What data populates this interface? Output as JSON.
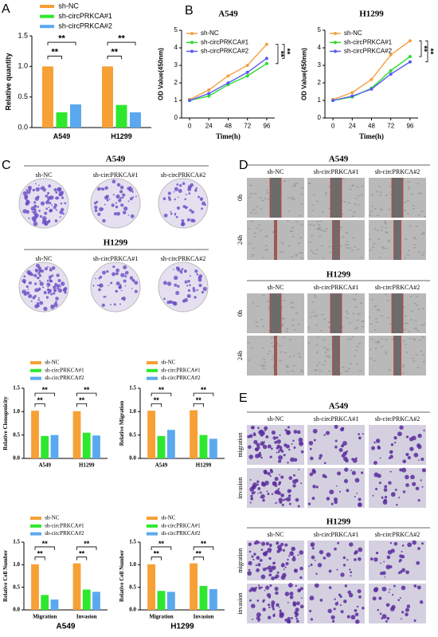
{
  "figure": {
    "panel_labels": [
      "A",
      "B",
      "C",
      "D",
      "E"
    ],
    "cell_lines": [
      "A549",
      "H1299"
    ],
    "groups": [
      "sh-NC",
      "sh-circPRKCA#1",
      "sh-circPRKCA#2"
    ],
    "times": [
      "0h",
      "24h"
    ],
    "assays": [
      "migration",
      "invasion"
    ]
  },
  "chart_data": [
    {
      "type": "bar",
      "ylabel": "Relative quantity",
      "categories": [
        "A549",
        "H1299"
      ],
      "series": [
        {
          "name": "sh-NC",
          "color": "#f7a035",
          "values": [
            1.0,
            1.0
          ]
        },
        {
          "name": "sh-circPRKCA#1",
          "color": "#2ee82e",
          "values": [
            0.25,
            0.37
          ]
        },
        {
          "name": "sh-circPRKCA#2",
          "color": "#5aa9f0",
          "values": [
            0.38,
            0.25
          ]
        }
      ],
      "ylim": [
        0,
        1.5
      ],
      "yticks": [
        {
          "value": 0,
          "label": "0.0"
        },
        {
          "value": 0.5,
          "label": "0.5"
        },
        {
          "value": 1,
          "label": "1.0"
        },
        {
          "value": 1.5,
          "label": "1.5"
        }
      ],
      "annotations": [
        "**",
        "**",
        "**",
        "**"
      ]
    },
    {
      "type": "line",
      "title": "A549",
      "xlabel": "Time(h)",
      "ylabel": "OD Value(450nm)",
      "x": [
        0,
        24,
        48,
        72,
        96
      ],
      "series": [
        {
          "name": "sh-NC",
          "color": "#f5a142",
          "values": [
            1.05,
            1.6,
            2.4,
            3.0,
            4.2
          ]
        },
        {
          "name": "sh-circPRKCA#1",
          "color": "#2edb2e",
          "values": [
            1.0,
            1.25,
            1.9,
            2.4,
            3.1
          ]
        },
        {
          "name": "sh-circPRKCA#2",
          "color": "#5b5bf0",
          "values": [
            1.0,
            1.4,
            2.0,
            2.6,
            3.4
          ]
        }
      ],
      "xlim": [
        -10,
        106
      ],
      "xticks": [
        0,
        24,
        48,
        72,
        96
      ],
      "ylim": [
        0,
        5
      ],
      "yticks": [
        0,
        1,
        2,
        3,
        4,
        5
      ],
      "annotations": [
        "**",
        "**"
      ]
    },
    {
      "type": "line",
      "title": "H1299",
      "xlabel": "Time(h)",
      "ylabel": "OD Value(450nm)",
      "x": [
        0,
        24,
        48,
        72,
        96
      ],
      "series": [
        {
          "name": "sh-NC",
          "color": "#f5a142",
          "values": [
            1.05,
            1.45,
            2.2,
            3.6,
            4.4
          ]
        },
        {
          "name": "sh-circPRKCA#1",
          "color": "#2edb2e",
          "values": [
            1.0,
            1.2,
            1.7,
            2.7,
            3.5
          ]
        },
        {
          "name": "sh-circPRKCA#2",
          "color": "#5b5bf0",
          "values": [
            1.0,
            1.25,
            1.65,
            2.5,
            3.2
          ]
        }
      ],
      "xlim": [
        -10,
        106
      ],
      "xticks": [
        0,
        24,
        48,
        72,
        96
      ],
      "ylim": [
        0,
        5
      ],
      "yticks": [
        0,
        1,
        2,
        3,
        4,
        5
      ],
      "annotations": [
        "**",
        "**"
      ]
    },
    {
      "type": "bar",
      "ylabel": "Relative Clonogenicity",
      "categories": [
        "A549",
        "H1299"
      ],
      "series": [
        {
          "name": "sh-NC",
          "color": "#f7a035",
          "values": [
            1.02,
            1.01
          ]
        },
        {
          "name": "sh-circPRKCA#1",
          "color": "#2ee82e",
          "values": [
            0.48,
            0.55
          ]
        },
        {
          "name": "sh-circPRKCA#2",
          "color": "#5aa9f0",
          "values": [
            0.5,
            0.49
          ]
        }
      ],
      "ylim": [
        0,
        1.5
      ],
      "yticks": [
        {
          "value": 0,
          "label": "0.0"
        },
        {
          "value": 0.5,
          "label": "0.5"
        },
        {
          "value": 1,
          "label": "1.0"
        },
        {
          "value": 1.5,
          "label": "1.5"
        }
      ],
      "annotations": [
        "**",
        "**",
        "**",
        "**"
      ]
    },
    {
      "type": "bar",
      "ylabel": "Relative Migration",
      "categories": [
        "A549",
        "H1299"
      ],
      "series": [
        {
          "name": "sh-NC",
          "color": "#f7a035",
          "values": [
            1.02,
            1.03
          ]
        },
        {
          "name": "sh-circPRKCA#1",
          "color": "#2ee82e",
          "values": [
            0.48,
            0.5
          ]
        },
        {
          "name": "sh-circPRKCA#2",
          "color": "#5aa9f0",
          "values": [
            0.61,
            0.42
          ]
        }
      ],
      "ylim": [
        0,
        1.5
      ],
      "yticks": [
        {
          "value": 0,
          "label": "0.0"
        },
        {
          "value": 0.5,
          "label": "0.5"
        },
        {
          "value": 1,
          "label": "1.0"
        },
        {
          "value": 1.5,
          "label": "1.5"
        }
      ],
      "annotations": [
        "**",
        "**",
        "**",
        "**"
      ]
    },
    {
      "type": "bar",
      "xlabel": "A549",
      "ylabel": "Relative Cell Number",
      "categories": [
        "Migration",
        "Invasion"
      ],
      "series": [
        {
          "name": "sh-NC",
          "color": "#f7a035",
          "values": [
            1.01,
            1.03
          ]
        },
        {
          "name": "sh-circPRKCA#1",
          "color": "#2ee82e",
          "values": [
            0.33,
            0.45
          ]
        },
        {
          "name": "sh-circPRKCA#2",
          "color": "#5aa9f0",
          "values": [
            0.23,
            0.4
          ]
        }
      ],
      "ylim": [
        0,
        1.5
      ],
      "yticks": [
        {
          "value": 0,
          "label": "0.0"
        },
        {
          "value": 0.5,
          "label": "0.5"
        },
        {
          "value": 1,
          "label": "1.0"
        },
        {
          "value": 1.5,
          "label": "1.5"
        }
      ],
      "annotations": [
        "**",
        "**",
        "**",
        "**"
      ]
    },
    {
      "type": "bar",
      "xlabel": "H1299",
      "ylabel": "Relative Cell Number",
      "categories": [
        "Migration",
        "Invasion"
      ],
      "series": [
        {
          "name": "sh-NC",
          "color": "#f7a035",
          "values": [
            1.01,
            1.03
          ]
        },
        {
          "name": "sh-circPRKCA#1",
          "color": "#2ee82e",
          "values": [
            0.42,
            0.53
          ]
        },
        {
          "name": "sh-circPRKCA#2",
          "color": "#5aa9f0",
          "values": [
            0.4,
            0.46
          ]
        }
      ],
      "ylim": [
        0,
        1.5
      ],
      "yticks": [
        {
          "value": 0,
          "label": "0.0"
        },
        {
          "value": 0.5,
          "label": "0.5"
        },
        {
          "value": 1,
          "label": "1.0"
        },
        {
          "value": 1.5,
          "label": "1.5"
        }
      ],
      "annotations": [
        "**",
        "**",
        "**",
        "**"
      ]
    }
  ]
}
